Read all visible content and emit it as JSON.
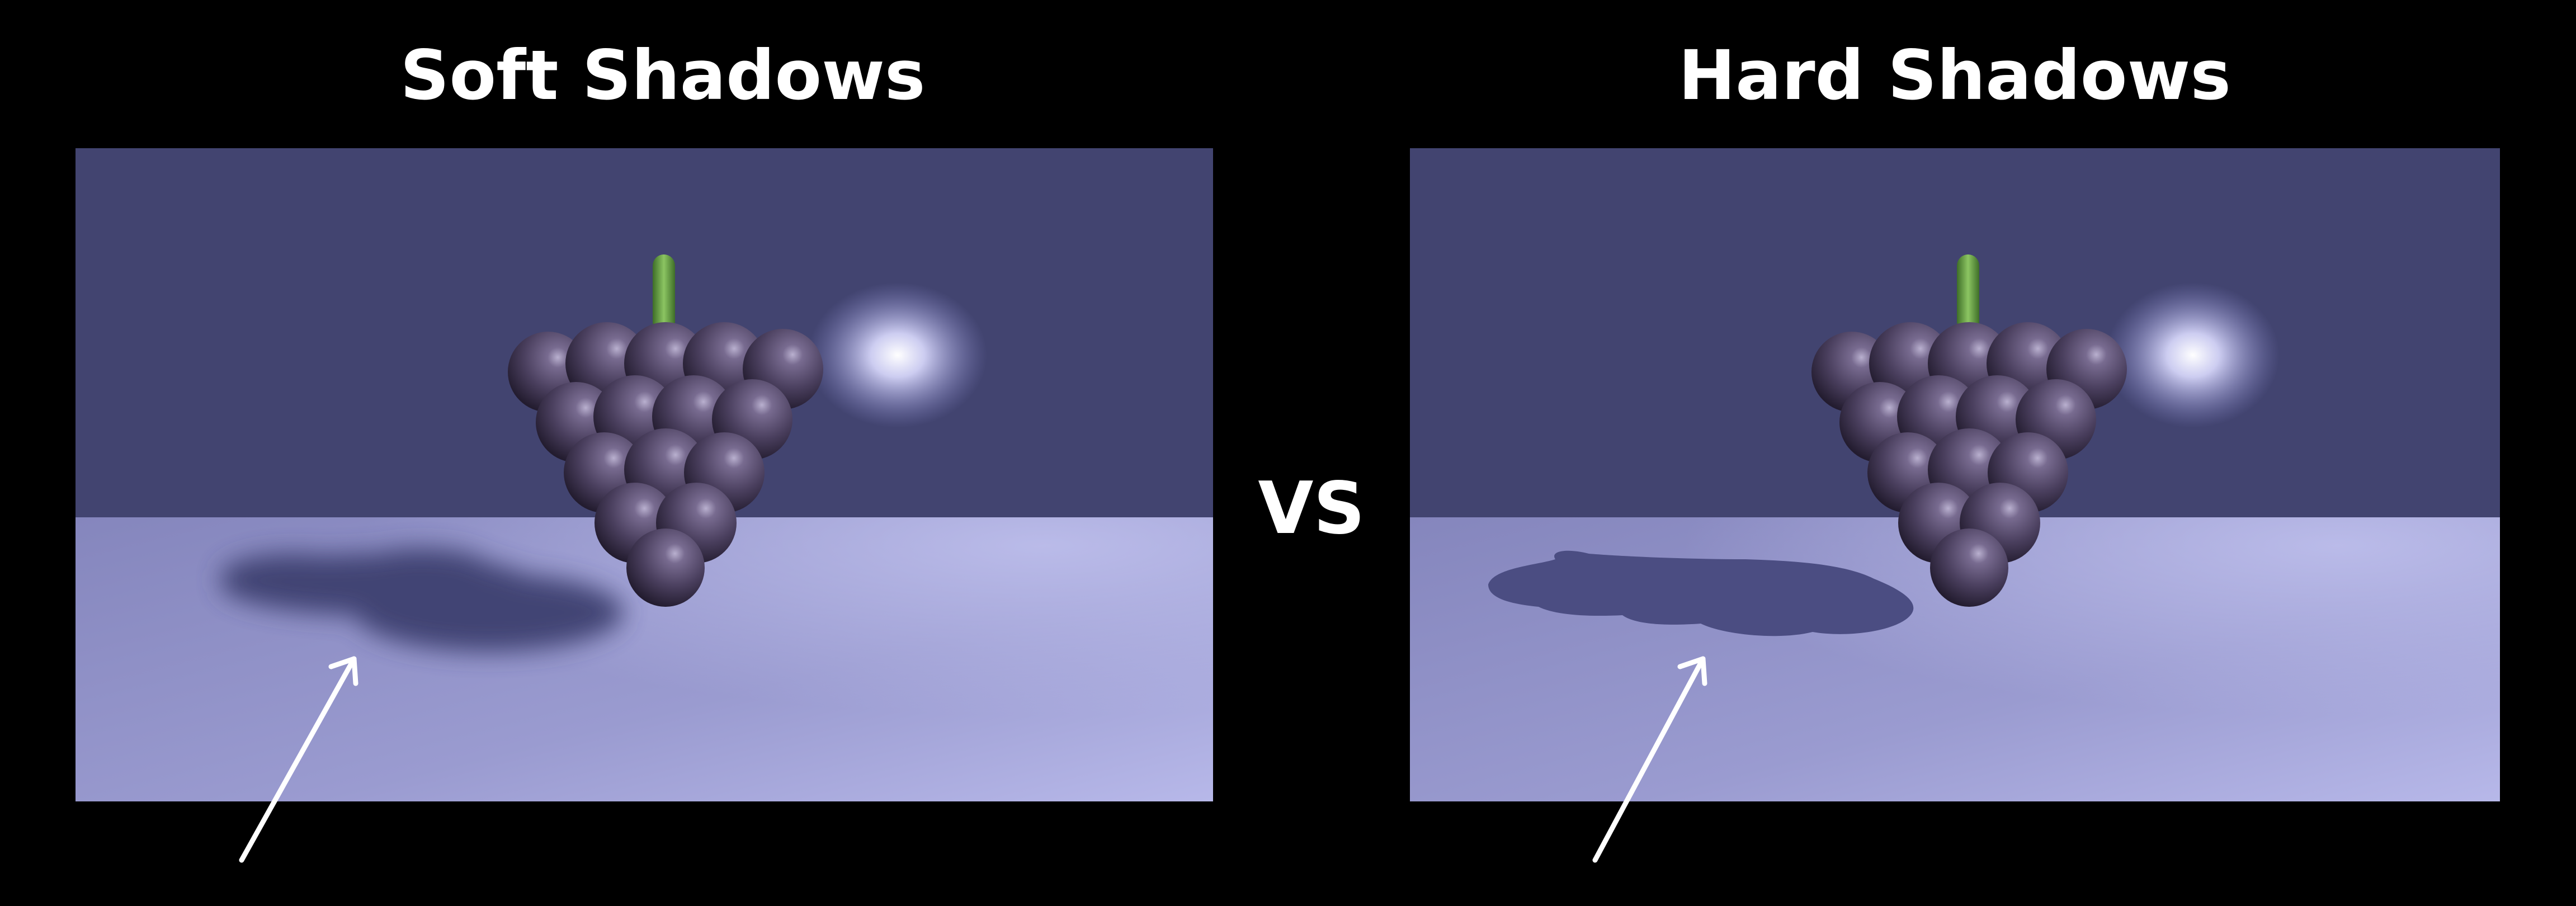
{
  "titles": {
    "left": "Soft Shadows",
    "right": "Hard Shadows",
    "separator": "VS"
  },
  "panels": [
    {
      "id": "soft",
      "shadow_style": "soft"
    },
    {
      "id": "hard",
      "shadow_style": "hard"
    }
  ],
  "colors": {
    "background": "#000000",
    "wall": "#424470",
    "floor": "#9a9bcf",
    "grape": "#4a3f5e",
    "stem": "#5f9a3a",
    "text": "#ffffff",
    "light": "#e8e8ff"
  }
}
